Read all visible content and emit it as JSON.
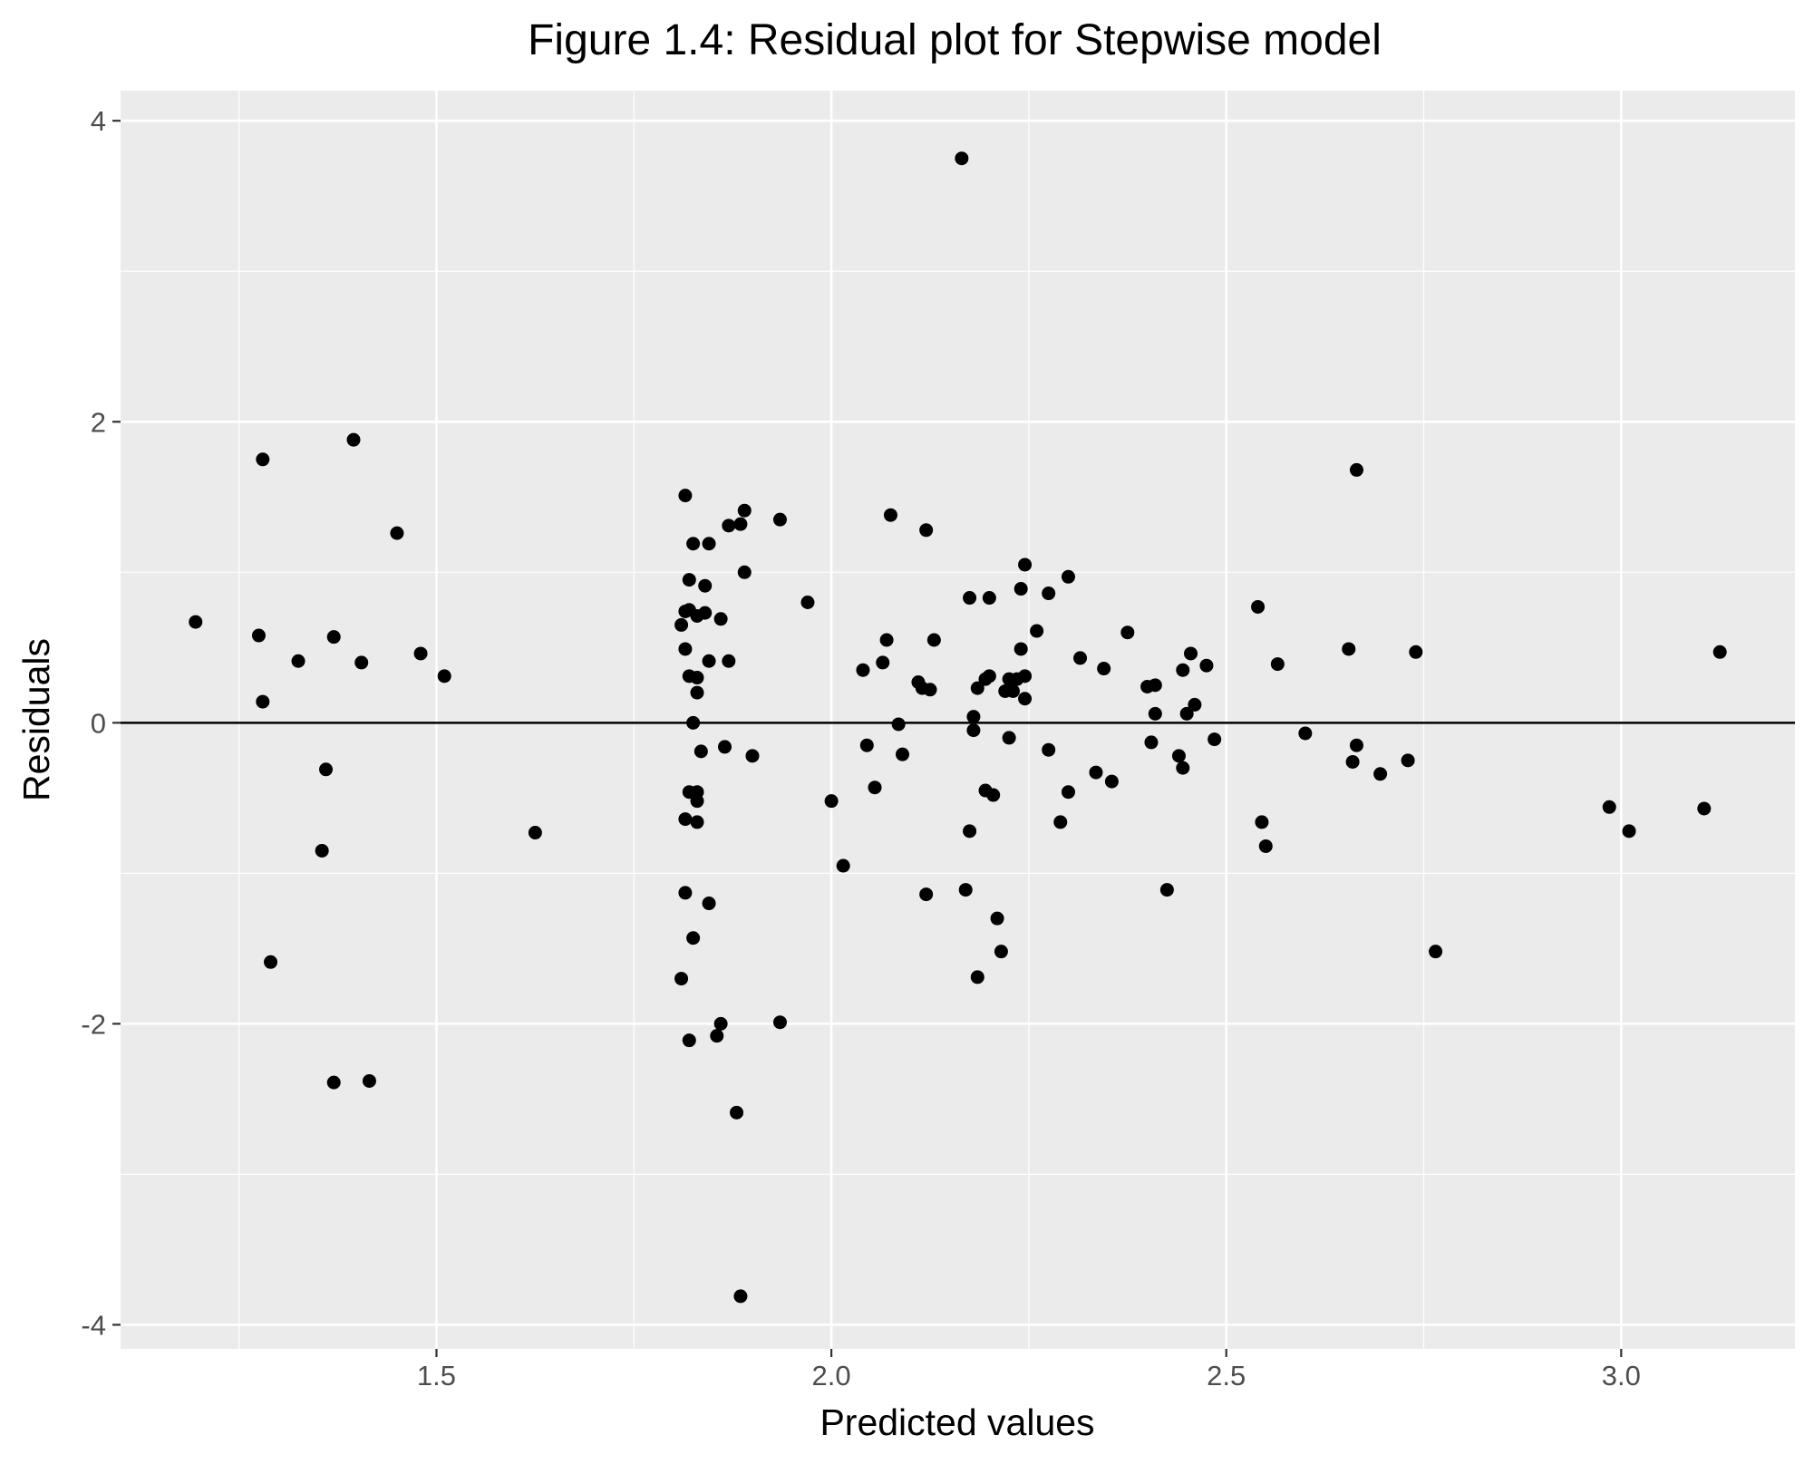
{
  "chart_data": {
    "type": "scatter",
    "title": "Figure 1.4: Residual plot for Stepwise model",
    "xlabel": "Predicted values",
    "ylabel": "Residuals",
    "xlim": [
      1.1,
      3.22
    ],
    "ylim": [
      -4.16,
      4.2
    ],
    "x_ticks": [
      1.5,
      2.0,
      2.5,
      3.0
    ],
    "x_tick_labels": [
      "1.5",
      "2.0",
      "2.5",
      "3.0"
    ],
    "y_ticks": [
      -4,
      -2,
      0,
      2,
      4
    ],
    "y_tick_labels": [
      "-4",
      "-2",
      "0",
      "2",
      "4"
    ],
    "grid": true,
    "hline": 0,
    "colors": {
      "panel": "#ebebeb",
      "grid": "#ffffff",
      "points": "#000000",
      "tick_label": "#4d4d4d"
    },
    "points": [
      [
        1.195,
        0.67
      ],
      [
        1.275,
        0.58
      ],
      [
        1.28,
        1.75
      ],
      [
        1.28,
        0.14
      ],
      [
        1.29,
        -1.59
      ],
      [
        1.325,
        0.41
      ],
      [
        1.36,
        -0.31
      ],
      [
        1.355,
        -0.85
      ],
      [
        1.37,
        0.57
      ],
      [
        1.37,
        -2.39
      ],
      [
        1.395,
        1.88
      ],
      [
        1.405,
        0.4
      ],
      [
        1.415,
        -2.38
      ],
      [
        1.45,
        1.26
      ],
      [
        1.48,
        0.46
      ],
      [
        1.51,
        0.31
      ],
      [
        1.625,
        -0.73
      ],
      [
        1.815,
        1.51
      ],
      [
        1.815,
        0.74
      ],
      [
        1.81,
        0.65
      ],
      [
        1.815,
        0.49
      ],
      [
        1.82,
        0.31
      ],
      [
        1.82,
        -0.46
      ],
      [
        1.815,
        -0.64
      ],
      [
        1.815,
        -1.13
      ],
      [
        1.81,
        -1.7
      ],
      [
        1.82,
        -2.11
      ],
      [
        1.82,
        0.95
      ],
      [
        1.82,
        0.75
      ],
      [
        1.825,
        0.0
      ],
      [
        1.825,
        1.19
      ],
      [
        1.83,
        0.71
      ],
      [
        1.83,
        0.3
      ],
      [
        1.83,
        0.2
      ],
      [
        1.83,
        -0.46
      ],
      [
        1.83,
        -0.52
      ],
      [
        1.83,
        -0.66
      ],
      [
        1.825,
        -1.43
      ],
      [
        1.835,
        -0.19
      ],
      [
        1.84,
        0.73
      ],
      [
        1.84,
        0.91
      ],
      [
        1.845,
        1.19
      ],
      [
        1.845,
        0.41
      ],
      [
        1.845,
        -1.2
      ],
      [
        1.86,
        0.69
      ],
      [
        1.865,
        -0.16
      ],
      [
        1.87,
        1.31
      ],
      [
        1.87,
        0.41
      ],
      [
        1.86,
        -2.0
      ],
      [
        1.855,
        -2.08
      ],
      [
        1.88,
        -2.59
      ],
      [
        1.885,
        -3.81
      ],
      [
        1.885,
        1.32
      ],
      [
        1.89,
        1.41
      ],
      [
        1.89,
        1.0
      ],
      [
        1.9,
        -0.22
      ],
      [
        1.935,
        1.35
      ],
      [
        1.935,
        -1.99
      ],
      [
        1.97,
        0.8
      ],
      [
        2.0,
        -0.52
      ],
      [
        2.015,
        -0.95
      ],
      [
        2.04,
        0.35
      ],
      [
        2.045,
        -0.15
      ],
      [
        2.055,
        -0.43
      ],
      [
        2.065,
        0.4
      ],
      [
        2.07,
        0.55
      ],
      [
        2.075,
        1.38
      ],
      [
        2.085,
        -0.01
      ],
      [
        2.09,
        -0.21
      ],
      [
        2.11,
        0.27
      ],
      [
        2.115,
        0.23
      ],
      [
        2.12,
        1.28
      ],
      [
        2.12,
        -1.14
      ],
      [
        2.125,
        0.22
      ],
      [
        2.13,
        0.55
      ],
      [
        2.17,
        -1.11
      ],
      [
        2.175,
        -0.72
      ],
      [
        2.175,
        0.83
      ],
      [
        2.18,
        0.04
      ],
      [
        2.18,
        -0.05
      ],
      [
        2.185,
        0.23
      ],
      [
        2.185,
        -1.69
      ],
      [
        2.195,
        0.29
      ],
      [
        2.195,
        -0.45
      ],
      [
        2.2,
        0.31
      ],
      [
        2.2,
        0.83
      ],
      [
        2.205,
        -0.48
      ],
      [
        2.21,
        -1.3
      ],
      [
        2.215,
        -1.52
      ],
      [
        2.22,
        0.21
      ],
      [
        2.225,
        0.29
      ],
      [
        2.225,
        -0.1
      ],
      [
        2.23,
        0.21
      ],
      [
        2.235,
        0.29
      ],
      [
        2.24,
        0.49
      ],
      [
        2.24,
        0.89
      ],
      [
        2.245,
        1.05
      ],
      [
        2.245,
        0.31
      ],
      [
        2.245,
        0.16
      ],
      [
        2.26,
        0.61
      ],
      [
        2.275,
        0.86
      ],
      [
        2.275,
        -0.18
      ],
      [
        2.29,
        -0.66
      ],
      [
        2.3,
        0.97
      ],
      [
        2.3,
        -0.46
      ],
      [
        2.315,
        0.43
      ],
      [
        2.335,
        -0.33
      ],
      [
        2.345,
        0.36
      ],
      [
        2.355,
        -0.39
      ],
      [
        2.375,
        0.6
      ],
      [
        2.4,
        0.24
      ],
      [
        2.405,
        -0.13
      ],
      [
        2.41,
        0.06
      ],
      [
        2.41,
        0.25
      ],
      [
        2.425,
        -1.11
      ],
      [
        2.44,
        -0.22
      ],
      [
        2.445,
        0.35
      ],
      [
        2.445,
        -0.3
      ],
      [
        2.45,
        0.06
      ],
      [
        2.455,
        0.46
      ],
      [
        2.46,
        0.12
      ],
      [
        2.475,
        0.38
      ],
      [
        2.485,
        -0.11
      ],
      [
        2.54,
        0.77
      ],
      [
        2.545,
        -0.66
      ],
      [
        2.55,
        -0.82
      ],
      [
        2.565,
        0.39
      ],
      [
        2.6,
        -0.07
      ],
      [
        2.655,
        0.49
      ],
      [
        2.66,
        -0.26
      ],
      [
        2.665,
        1.68
      ],
      [
        2.665,
        -0.15
      ],
      [
        2.695,
        -0.34
      ],
      [
        2.73,
        -0.25
      ],
      [
        2.74,
        0.47
      ],
      [
        2.765,
        -1.52
      ],
      [
        2.985,
        -0.56
      ],
      [
        3.01,
        -0.72
      ],
      [
        3.105,
        -0.57
      ],
      [
        3.125,
        0.47
      ],
      [
        2.165,
        3.75
      ]
    ]
  }
}
